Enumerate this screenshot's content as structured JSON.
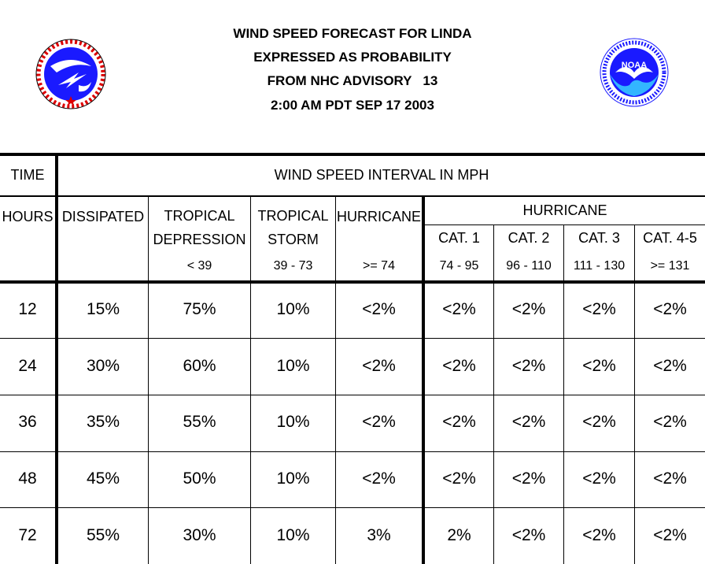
{
  "title": {
    "line1": "WIND SPEED FORECAST FOR LINDA",
    "line2": "EXPRESSED AS PROBABILITY",
    "line3": "FROM NHC ADVISORY   13",
    "line4": "2:00 AM PDT SEP 17 2003"
  },
  "logos": {
    "left": "national-weather-service-logo",
    "right": "noaa-logo",
    "noaa_text": "NOAA"
  },
  "colors": {
    "logo_blue": "#1a1aff",
    "logo_light_blue": "#33b5ff"
  },
  "header": {
    "time": "TIME",
    "wind_interval": "WIND SPEED INTERVAL IN MPH",
    "hours": "HOURS",
    "dissipated": "DISSIPATED",
    "td_line1": "TROPICAL",
    "td_line2": "DEPRESSION",
    "td_range": "< 39",
    "ts_line1": "TROPICAL",
    "ts_line2": "STORM",
    "ts_range": "39 - 73",
    "hurricane": "HURRICANE",
    "hurricane_range": ">= 74",
    "hurricane_group": "HURRICANE",
    "cat1": "CAT. 1",
    "cat1_range": "74 - 95",
    "cat2": "CAT. 2",
    "cat2_range": "96 - 110",
    "cat3": "CAT. 3",
    "cat3_range": "111 - 130",
    "cat45": "CAT. 4-5",
    "cat45_range": ">= 131"
  },
  "rows": [
    [
      "12",
      "15%",
      "75%",
      "10%",
      "<2%",
      "<2%",
      "<2%",
      "<2%",
      "<2%"
    ],
    [
      "24",
      "30%",
      "60%",
      "10%",
      "<2%",
      "<2%",
      "<2%",
      "<2%",
      "<2%"
    ],
    [
      "36",
      "35%",
      "55%",
      "10%",
      "<2%",
      "<2%",
      "<2%",
      "<2%",
      "<2%"
    ],
    [
      "48",
      "45%",
      "50%",
      "10%",
      "<2%",
      "<2%",
      "<2%",
      "<2%",
      "<2%"
    ],
    [
      "72",
      "55%",
      "30%",
      "10%",
      "3%",
      "2%",
      "<2%",
      "<2%",
      "<2%"
    ]
  ]
}
